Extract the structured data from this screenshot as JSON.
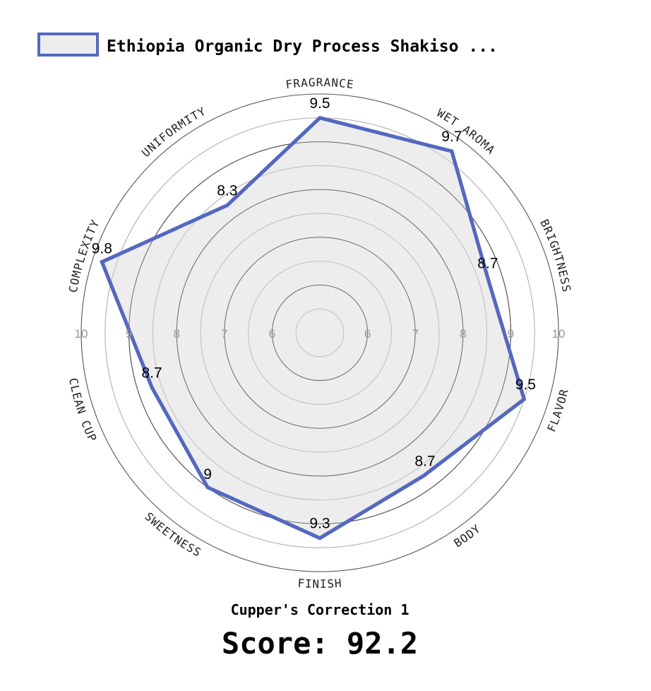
{
  "chart_data": {
    "type": "radar",
    "categories": [
      "FRAGRANCE",
      "WET AROMA",
      "BRIGHTNESS",
      "FLAVOR",
      "BODY",
      "FINISH",
      "SWEETNESS",
      "CLEAN CUP",
      "COMPLEXITY",
      "UNIFORMITY"
    ],
    "series": [
      {
        "name": "Ethiopia Organic Dry Process Shakiso ...",
        "values": [
          9.5,
          9.7,
          8.7,
          9.5,
          8.7,
          9.3,
          9,
          8.7,
          9.8,
          8.3
        ],
        "value_labels": [
          "9.5",
          "9.7",
          "8.7",
          "9.5",
          "8.7",
          "9.3",
          "9",
          "8.7",
          "9.8",
          "8.3"
        ]
      }
    ],
    "rlim": [
      5,
      10
    ],
    "ticks_right": [
      "6",
      "7",
      "8",
      "9",
      "10"
    ],
    "ticks_left": [
      "6",
      "7",
      "8",
      "9",
      "10"
    ],
    "grid": true,
    "legend_position": "top",
    "colors": {
      "line": "#5468c0",
      "fill": "#ececec",
      "legend_fill": "#ededf0",
      "grid": "#555555",
      "grid_light": "#b0b0b0"
    }
  },
  "cupper_correction": "Cupper's Correction 1",
  "score": "Score: 92.2"
}
